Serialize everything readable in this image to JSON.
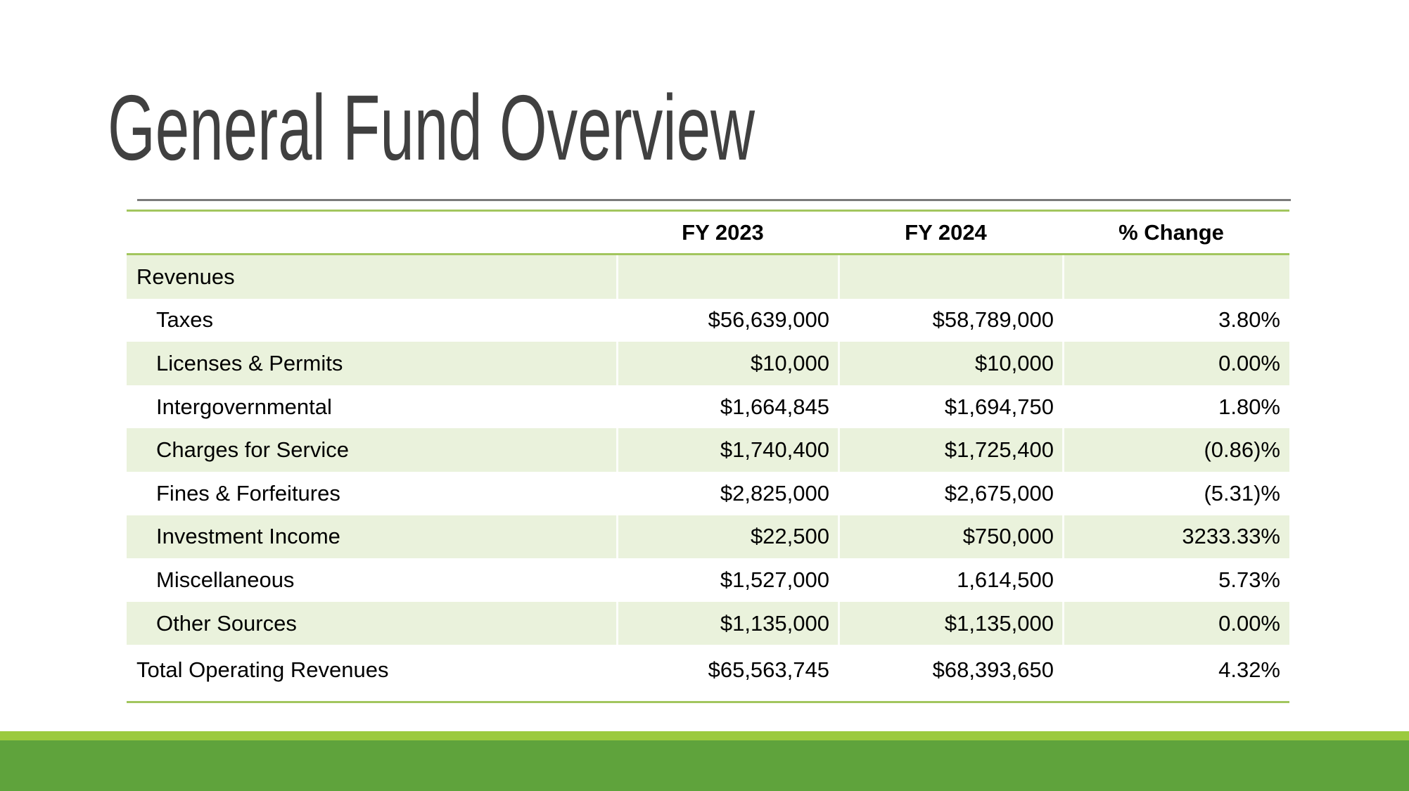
{
  "slide": {
    "title": "General Fund Overview"
  },
  "table": {
    "headers": {
      "label": "",
      "fy2023": "FY 2023",
      "fy2024": "FY 2024",
      "change": "% Change"
    },
    "rows": [
      {
        "label": "Revenues",
        "fy2023": "",
        "fy2024": "",
        "change": "",
        "indent": false
      },
      {
        "label": "Taxes",
        "fy2023": "$56,639,000",
        "fy2024": "$58,789,000",
        "change": "3.80%",
        "indent": true
      },
      {
        "label": "Licenses & Permits",
        "fy2023": "$10,000",
        "fy2024": "$10,000",
        "change": "0.00%",
        "indent": true
      },
      {
        "label": "Intergovernmental",
        "fy2023": "$1,664,845",
        "fy2024": "$1,694,750",
        "change": "1.80%",
        "indent": true
      },
      {
        "label": "Charges for Service",
        "fy2023": "$1,740,400",
        "fy2024": "$1,725,400",
        "change": "(0.86)%",
        "indent": true
      },
      {
        "label": "Fines & Forfeitures",
        "fy2023": "$2,825,000",
        "fy2024": "$2,675,000",
        "change": "(5.31)%",
        "indent": true
      },
      {
        "label": "Investment Income",
        "fy2023": "$22,500",
        "fy2024": "$750,000",
        "change": "3233.33%",
        "indent": true
      },
      {
        "label": "Miscellaneous",
        "fy2023": "$1,527,000",
        "fy2024": "1,614,500",
        "change": "5.73%",
        "indent": true
      },
      {
        "label": "Other Sources",
        "fy2023": "$1,135,000",
        "fy2024": "$1,135,000",
        "change": "0.00%",
        "indent": true
      },
      {
        "label": "Total Operating Revenues",
        "fy2023": "$65,563,745",
        "fy2024": "$68,393,650",
        "change": "4.32%",
        "indent": false
      }
    ]
  },
  "colors": {
    "shaded_row_bg": "#EAF2DC",
    "table_line_green": "#A2C65E",
    "footer_light_green": "#9BCA3E",
    "footer_dark_green": "#5FA33C",
    "title_text": "#404040",
    "title_underline": "#7A7A7A",
    "body_text": "#000000"
  }
}
